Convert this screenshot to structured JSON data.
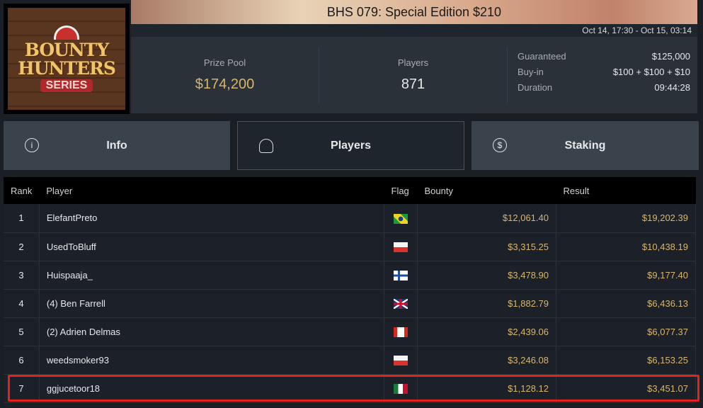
{
  "logo": {
    "line1": "BOUNTY",
    "line2": "HUNTERS",
    "line3": "SERIES"
  },
  "header": {
    "title": "BHS 079: Special Edition $210",
    "dates": "Oct 14, 17:30 - Oct 15, 03:14"
  },
  "stats": {
    "prize_pool_label": "Prize Pool",
    "prize_pool": "$174,200",
    "players_label": "Players",
    "players": "871",
    "details": [
      {
        "k": "Guaranteed",
        "v": "$125,000"
      },
      {
        "k": "Buy-in",
        "v": "$100 + $100 + $10"
      },
      {
        "k": "Duration",
        "v": "09:44:28"
      }
    ]
  },
  "tabs": [
    {
      "label": "Info",
      "icon": "info-icon"
    },
    {
      "label": "Players",
      "icon": "user-icon",
      "active": true
    },
    {
      "label": "Staking",
      "icon": "dollar-icon"
    }
  ],
  "table": {
    "headers": [
      "Rank",
      "Player",
      "Flag",
      "Bounty",
      "Result"
    ],
    "rows": [
      {
        "rank": "1",
        "player": "ElefantPreto",
        "flag": "Brazil",
        "bounty": "$12,061.40",
        "result": "$19,202.39"
      },
      {
        "rank": "2",
        "player": "UsedToBluff",
        "flag": "Poland",
        "bounty": "$3,315.25",
        "result": "$10,438.19"
      },
      {
        "rank": "3",
        "player": "Huispaaja_",
        "flag": "Finland",
        "bounty": "$3,478.90",
        "result": "$9,177.40"
      },
      {
        "rank": "4",
        "player": "(4) Ben Farrell",
        "flag": "United Kingdom",
        "bounty": "$1,882.79",
        "result": "$6,436.13"
      },
      {
        "rank": "5",
        "player": "(2) Adrien Delmas",
        "flag": "Canada",
        "bounty": "$2,439.06",
        "result": "$6,077.37"
      },
      {
        "rank": "6",
        "player": "weedsmoker93",
        "flag": "Poland",
        "bounty": "$3,246.08",
        "result": "$6,153.25"
      },
      {
        "rank": "7",
        "player": "ggjucetoor18",
        "flag": "Mexico",
        "bounty": "$1,128.12",
        "result": "$3,451.07"
      }
    ]
  },
  "colors": {
    "accent_gold": "#d9b56c",
    "highlight": "#e0231c"
  }
}
